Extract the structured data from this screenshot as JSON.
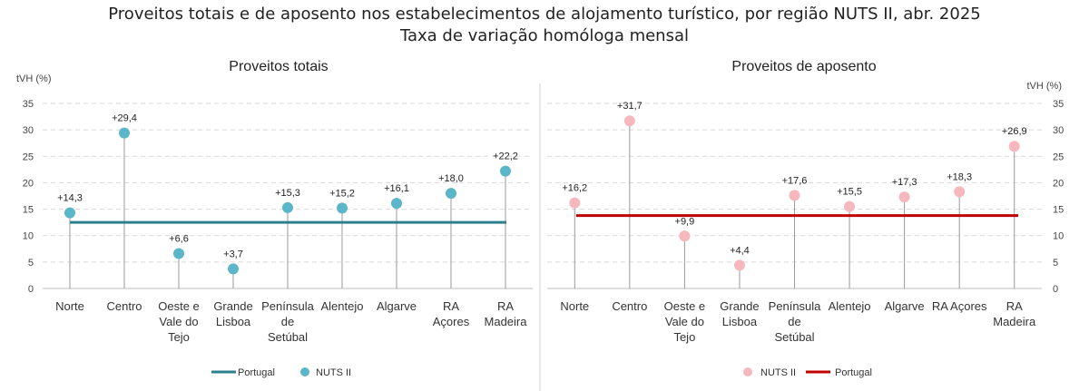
{
  "figure": {
    "title": "Proveitos totais e de aposento nos estabelecimentos de alojamento turístico, por região NUTS II, abr. 2025",
    "subtitle": "Taxa de variação homóloga mensal"
  },
  "colors": {
    "left_points": "#5ab6c8",
    "left_line": "#2e7f8e",
    "right_points": "#f7b8bd",
    "right_line": "#c00000",
    "grid": "#d9d9d9",
    "stem": "#9a9a9a"
  },
  "chart_data": [
    {
      "type": "scatter",
      "title": "Proveitos totais",
      "ylabel": "tVH (%)",
      "ylim": [
        0,
        35
      ],
      "yticks": [
        "0",
        "5",
        "10",
        "15",
        "20",
        "25",
        "30",
        "35"
      ],
      "categories": [
        [
          "Norte"
        ],
        [
          "Centro"
        ],
        [
          "Oeste e",
          "Vale do",
          "Tejo"
        ],
        [
          "Grande",
          "Lisboa"
        ],
        [
          "Península",
          "de",
          "Setúbal"
        ],
        [
          "Alentejo"
        ],
        [
          "Algarve"
        ],
        [
          "RA",
          "Açores"
        ],
        [
          "RA",
          "Madeira"
        ]
      ],
      "series": [
        {
          "name": "NUTS II",
          "values": [
            14.3,
            29.4,
            6.6,
            3.7,
            15.3,
            15.2,
            16.1,
            18.0,
            22.2
          ],
          "labels": [
            "+14,3",
            "+29,4",
            "+6,6",
            "+3,7",
            "+15,3",
            "+15,2",
            "+16,1",
            "+18,0",
            "+22,2"
          ]
        },
        {
          "name": "Portugal",
          "value": 12.5
        }
      ],
      "legend": [
        "Portugal",
        "NUTS II"
      ],
      "legend_position": "bottom",
      "grid": true,
      "axis_side": "left"
    },
    {
      "type": "scatter",
      "title": "Proveitos de aposento",
      "ylabel": "tVH (%)",
      "ylim": [
        0,
        35
      ],
      "yticks": [
        "0",
        "5",
        "10",
        "15",
        "20",
        "25",
        "30",
        "35"
      ],
      "categories": [
        [
          "Norte"
        ],
        [
          "Centro"
        ],
        [
          "Oeste e",
          "Vale do",
          "Tejo"
        ],
        [
          "Grande",
          "Lisboa"
        ],
        [
          "Península",
          "de",
          "Setúbal"
        ],
        [
          "Alentejo"
        ],
        [
          "Algarve"
        ],
        [
          "RA Açores"
        ],
        [
          "RA",
          "Madeira"
        ]
      ],
      "series": [
        {
          "name": "NUTS II",
          "values": [
            16.2,
            31.7,
            9.9,
            4.4,
            17.6,
            15.5,
            17.3,
            18.3,
            26.9
          ],
          "labels": [
            "+16,2",
            "+31,7",
            "+9,9",
            "+4,4",
            "+17,6",
            "+15,5",
            "+17,3",
            "+18,3",
            "+26,9"
          ]
        },
        {
          "name": "Portugal",
          "value": 13.8
        }
      ],
      "legend": [
        "NUTS II",
        "Portugal"
      ],
      "legend_position": "bottom",
      "grid": true,
      "axis_side": "right"
    }
  ]
}
